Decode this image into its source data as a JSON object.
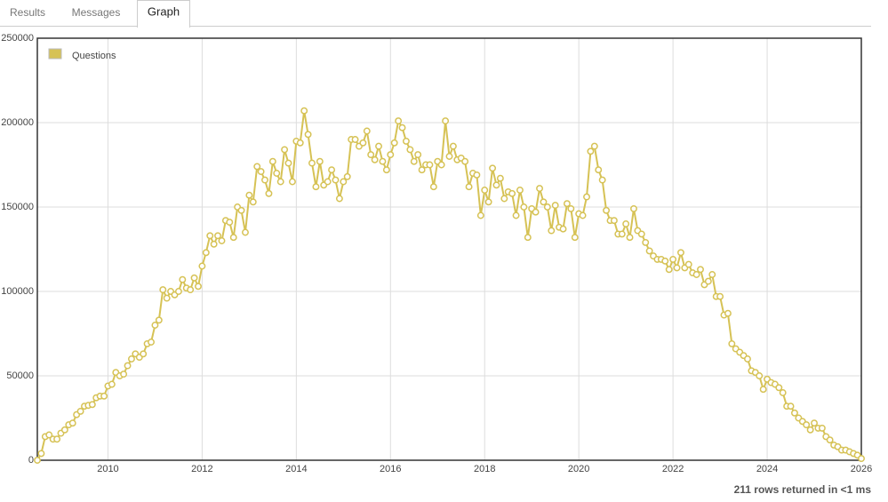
{
  "tabs": [
    "Results",
    "Messages",
    "Graph"
  ],
  "status": "211 rows returned in <1 ms",
  "chart_data": {
    "type": "line",
    "x": [
      2008.5,
      2008.583,
      2008.667,
      2008.75,
      2008.833,
      2008.917,
      2009,
      2009.083,
      2009.167,
      2009.25,
      2009.333,
      2009.417,
      2009.5,
      2009.583,
      2009.667,
      2009.75,
      2009.833,
      2009.917,
      2010,
      2010.083,
      2010.167,
      2010.25,
      2010.333,
      2010.417,
      2010.5,
      2010.583,
      2010.667,
      2010.75,
      2010.833,
      2010.917,
      2011,
      2011.083,
      2011.167,
      2011.25,
      2011.333,
      2011.417,
      2011.5,
      2011.583,
      2011.667,
      2011.75,
      2011.833,
      2011.917,
      2012,
      2012.083,
      2012.167,
      2012.25,
      2012.333,
      2012.417,
      2012.5,
      2012.583,
      2012.667,
      2012.75,
      2012.833,
      2012.917,
      2013,
      2013.083,
      2013.167,
      2013.25,
      2013.333,
      2013.417,
      2013.5,
      2013.583,
      2013.667,
      2013.75,
      2013.833,
      2013.917,
      2014,
      2014.083,
      2014.167,
      2014.25,
      2014.333,
      2014.417,
      2014.5,
      2014.583,
      2014.667,
      2014.75,
      2014.833,
      2014.917,
      2015,
      2015.083,
      2015.167,
      2015.25,
      2015.333,
      2015.417,
      2015.5,
      2015.583,
      2015.667,
      2015.75,
      2015.833,
      2015.917,
      2016,
      2016.083,
      2016.167,
      2016.25,
      2016.333,
      2016.417,
      2016.5,
      2016.583,
      2016.667,
      2016.75,
      2016.833,
      2016.917,
      2017,
      2017.083,
      2017.167,
      2017.25,
      2017.333,
      2017.417,
      2017.5,
      2017.583,
      2017.667,
      2017.75,
      2017.833,
      2017.917,
      2018,
      2018.083,
      2018.167,
      2018.25,
      2018.333,
      2018.417,
      2018.5,
      2018.583,
      2018.667,
      2018.75,
      2018.833,
      2018.917,
      2019,
      2019.083,
      2019.167,
      2019.25,
      2019.333,
      2019.417,
      2019.5,
      2019.583,
      2019.667,
      2019.75,
      2019.833,
      2019.917,
      2020,
      2020.083,
      2020.167,
      2020.25,
      2020.333,
      2020.417,
      2020.5,
      2020.583,
      2020.667,
      2020.75,
      2020.833,
      2020.917,
      2021,
      2021.083,
      2021.167,
      2021.25,
      2021.333,
      2021.417,
      2021.5,
      2021.583,
      2021.667,
      2021.75,
      2021.833,
      2021.917,
      2022,
      2022.083,
      2022.167,
      2022.25,
      2022.333,
      2022.417,
      2022.5,
      2022.583,
      2022.667,
      2022.75,
      2022.833,
      2022.917,
      2023,
      2023.083,
      2023.167,
      2023.25,
      2023.333,
      2023.417,
      2023.5,
      2023.583,
      2023.667,
      2023.75,
      2023.833,
      2023.917,
      2024,
      2024.083,
      2024.167,
      2024.25,
      2024.333,
      2024.417,
      2024.5,
      2024.583,
      2024.667,
      2024.75,
      2024.833,
      2024.917,
      2025,
      2025.083,
      2025.167,
      2025.25,
      2025.333,
      2025.417,
      2025.5,
      2025.583,
      2025.667,
      2025.75,
      2025.833,
      2025.917,
      2026
    ],
    "series": [
      {
        "name": "Questions",
        "color": "#d6c255",
        "values": [
          0,
          4000,
          14000,
          15000,
          12500,
          12500,
          16000,
          18000,
          21000,
          22000,
          27000,
          29000,
          32000,
          32500,
          33000,
          37000,
          38000,
          38000,
          44000,
          45000,
          52000,
          50000,
          51000,
          56000,
          60000,
          63000,
          61000,
          63000,
          69000,
          70000,
          80000,
          83000,
          101000,
          96000,
          100000,
          98000,
          100000,
          107000,
          102000,
          101000,
          108000,
          103000,
          115000,
          123000,
          133000,
          128000,
          133000,
          130000,
          142000,
          141000,
          132000,
          150000,
          148000,
          135000,
          157000,
          153000,
          174000,
          171000,
          166000,
          158000,
          177000,
          170000,
          165000,
          184000,
          176000,
          165000,
          189000,
          188000,
          207000,
          193000,
          176000,
          162000,
          177000,
          163000,
          165000,
          172000,
          166000,
          155000,
          165000,
          168000,
          190000,
          190000,
          186000,
          188000,
          195000,
          181000,
          178000,
          186000,
          177000,
          172000,
          181000,
          188000,
          201000,
          197000,
          189000,
          184000,
          177000,
          181000,
          172000,
          175000,
          175000,
          162000,
          177000,
          175000,
          201000,
          180000,
          186000,
          178000,
          179000,
          177000,
          162000,
          170000,
          169000,
          145000,
          160000,
          153000,
          173000,
          163000,
          167000,
          155000,
          159000,
          158000,
          145000,
          160000,
          150000,
          132000,
          149000,
          147000,
          161000,
          153000,
          150000,
          136000,
          151000,
          138000,
          137000,
          152000,
          149000,
          132000,
          146000,
          145000,
          156000,
          183000,
          186000,
          172000,
          166000,
          148000,
          142000,
          142000,
          134000,
          134000,
          140000,
          132000,
          149000,
          136000,
          134000,
          129000,
          124000,
          121000,
          119000,
          119000,
          118000,
          113000,
          119000,
          114000,
          123000,
          114000,
          116000,
          111000,
          110000,
          113000,
          104000,
          106000,
          110000,
          97000,
          97000,
          86000,
          87000,
          69000,
          66000,
          64000,
          62000,
          60000,
          53000,
          52000,
          50000,
          42000,
          48000,
          46000,
          45000,
          43000,
          40000,
          32000,
          32000,
          28000,
          25000,
          23000,
          21000,
          18000,
          22000,
          19000,
          19000,
          14000,
          12000,
          9000,
          8000,
          6000,
          6000,
          5000,
          4000,
          3000,
          1000
        ]
      }
    ],
    "xlim": [
      2008.5,
      2026
    ],
    "xticks": [
      2010,
      2012,
      2014,
      2016,
      2018,
      2020,
      2022,
      2024,
      2026
    ],
    "ylim": [
      0,
      250000
    ],
    "yticks": [
      0,
      50000,
      100000,
      150000,
      200000,
      250000
    ],
    "grid": true,
    "legend": "upper left"
  }
}
